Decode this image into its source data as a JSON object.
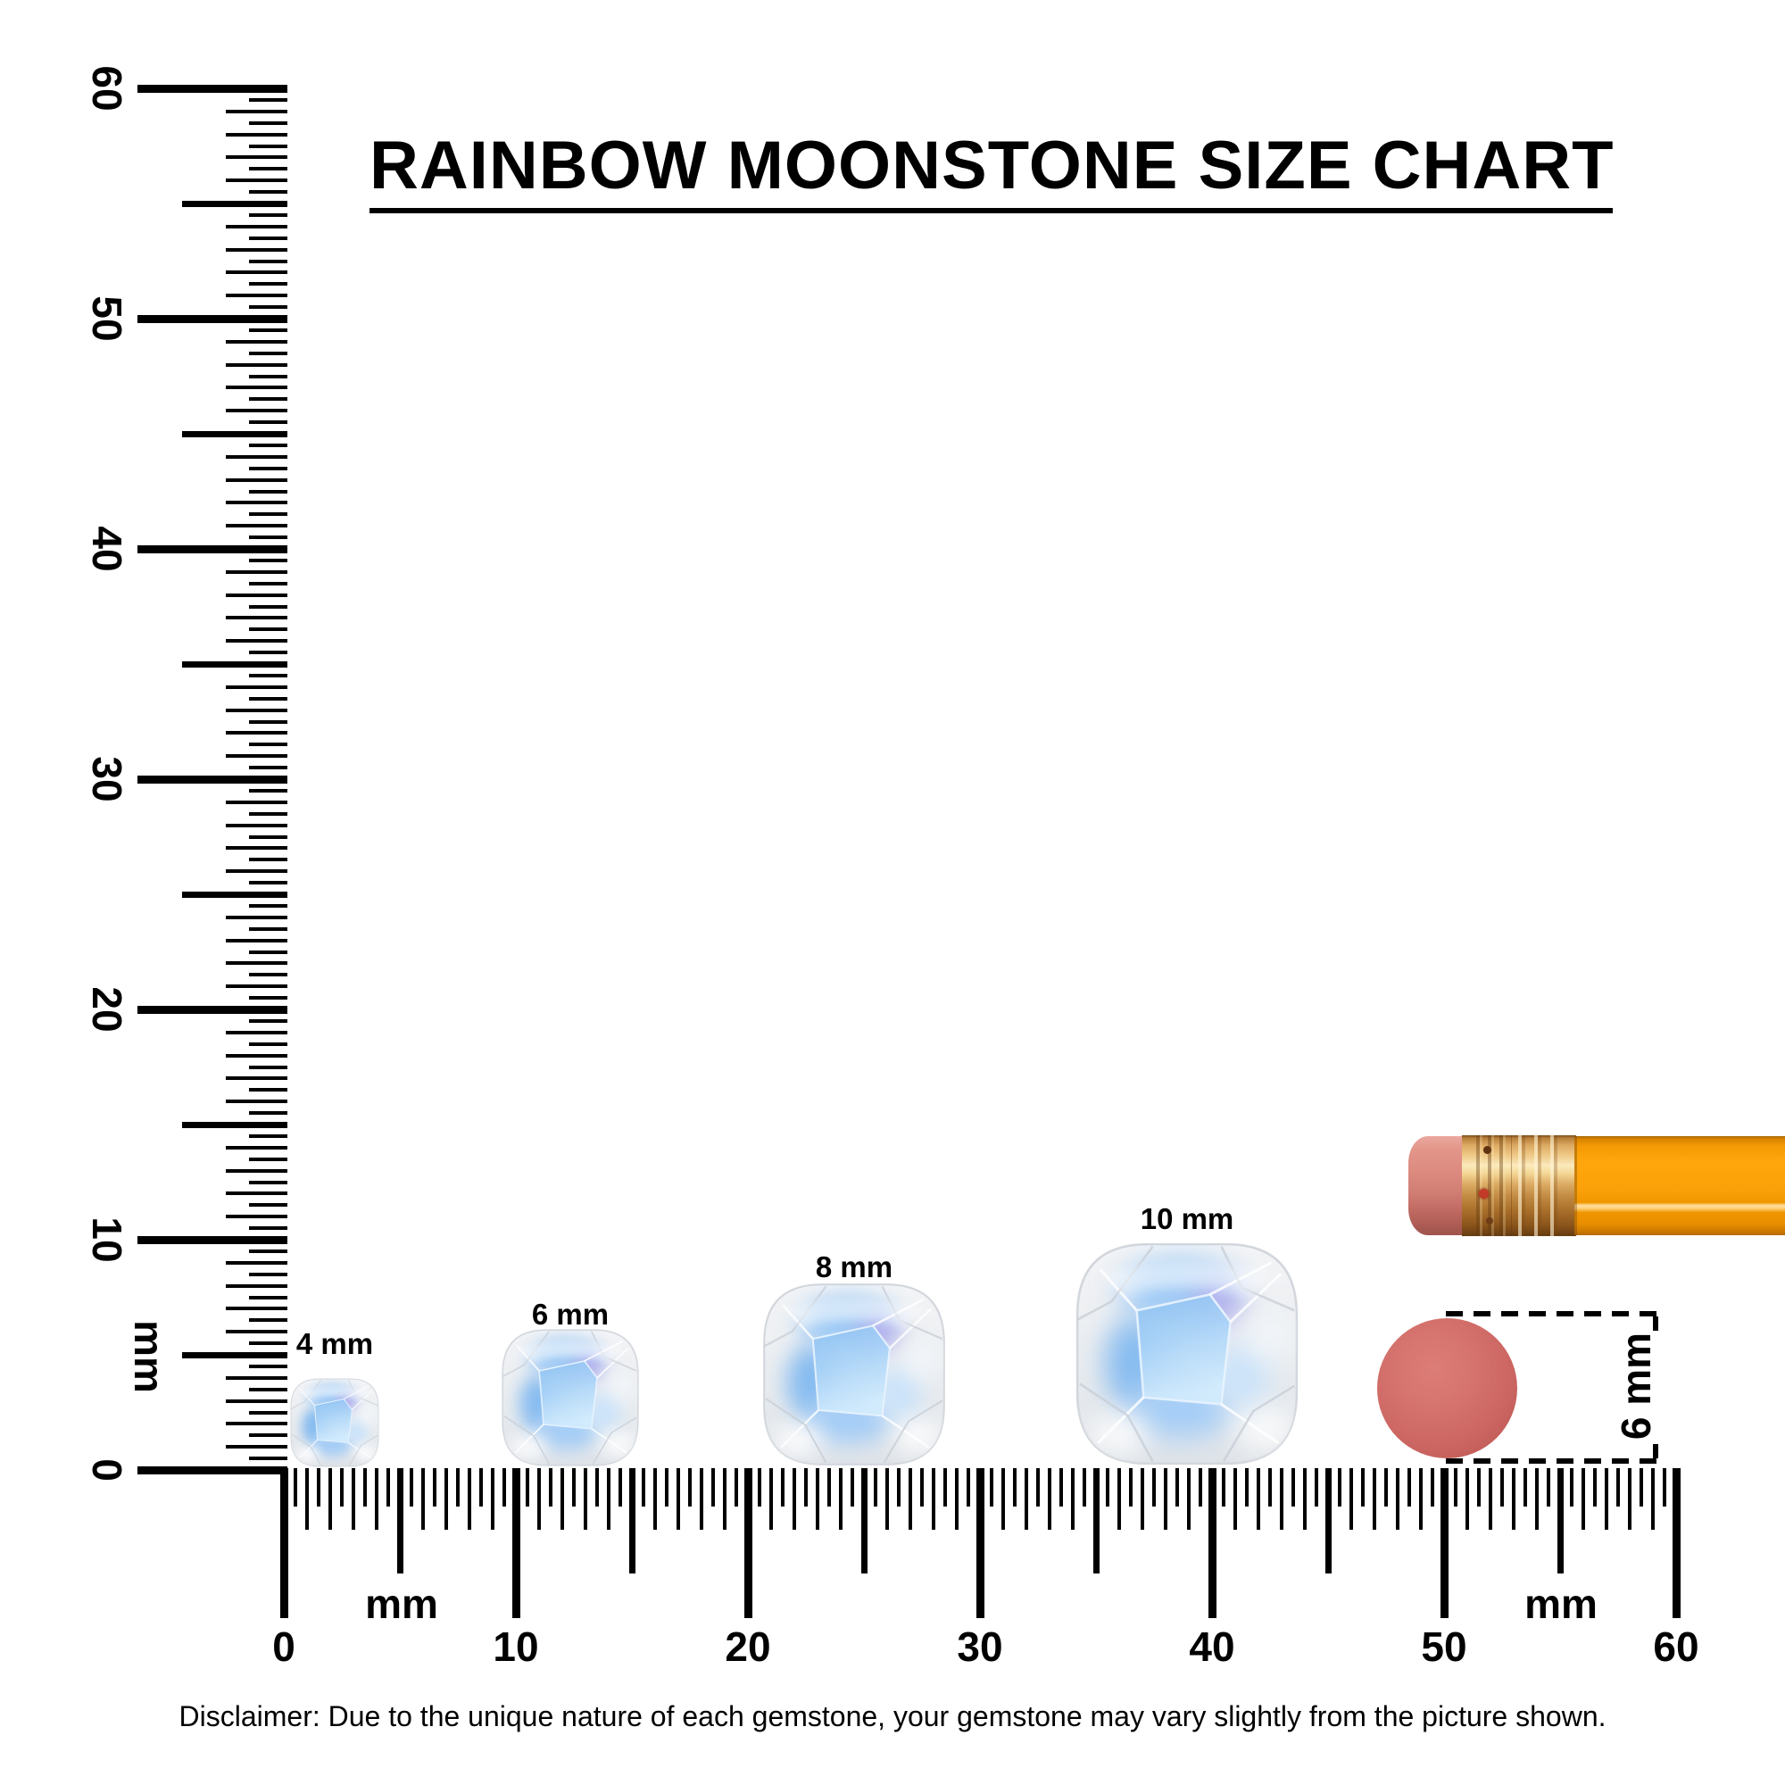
{
  "title": {
    "text": "RAINBOW MOONSTONE SIZE CHART"
  },
  "rulers": {
    "vertical": {
      "unit": "mm",
      "labels": [
        "60",
        "50",
        "40",
        "30",
        "20",
        "10",
        "0"
      ]
    },
    "horizontal": {
      "unit": "mm",
      "labels": [
        "0",
        "10",
        "20",
        "30",
        "40",
        "50",
        "60"
      ]
    }
  },
  "gems": [
    {
      "label": "4 mm",
      "size_mm": 4
    },
    {
      "label": "6 mm",
      "size_mm": 6
    },
    {
      "label": "8 mm",
      "size_mm": 8
    },
    {
      "label": "10 mm",
      "size_mm": 10
    }
  ],
  "eraser_measurement": {
    "label": "6 mm"
  },
  "disclaimer": {
    "text": "Disclaimer: Due to the unique nature of each gemstone, your gemstone may vary slightly from the picture shown."
  },
  "colors": {
    "ink": "#000000",
    "pencil_body_orange": "#f89e06",
    "pencil_ferrule_gold": "#dcaa62",
    "pencil_eraser_pink": "#d8867e",
    "eraser_top_red": "#cd6763",
    "moonstone_blue": "#9cc9f4",
    "moonstone_rim": "#e9ecef"
  }
}
